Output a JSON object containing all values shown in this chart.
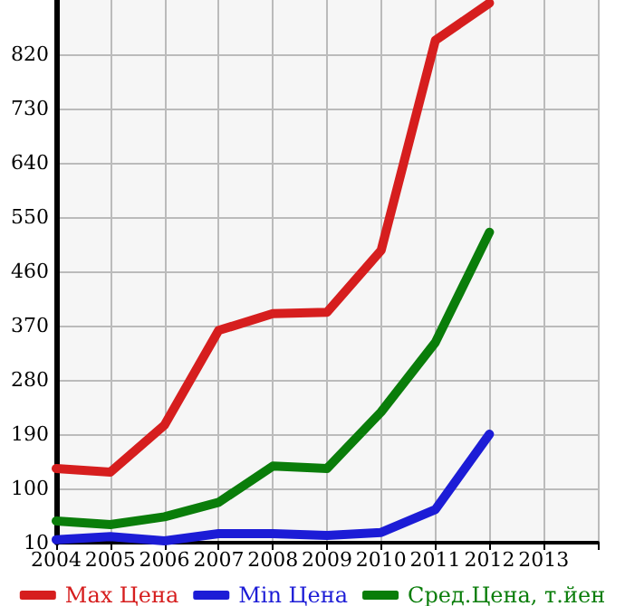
{
  "chart_data": {
    "type": "line",
    "x": [
      2004,
      2005,
      2006,
      2007,
      2008,
      2009,
      2010,
      2011,
      2012
    ],
    "series": [
      {
        "name": "Max Цена",
        "color": "#d61e1e",
        "values": [
          133,
          127,
          205,
          362,
          390,
          392,
          495,
          843,
          905
        ]
      },
      {
        "name": "Min Цена",
        "color": "#1c1cd6",
        "values": [
          15,
          20,
          13,
          25,
          25,
          22,
          27,
          65,
          190
        ]
      },
      {
        "name": "Сред.Цена, т.йен",
        "color": "#0a7d0a",
        "values": [
          46,
          40,
          53,
          77,
          137,
          133,
          227,
          342,
          525
        ]
      }
    ],
    "xlim": [
      2004,
      2014
    ],
    "xticks": [
      2004,
      2005,
      2006,
      2007,
      2008,
      2009,
      2010,
      2011,
      2012,
      2013,
      {
        "value": 2014,
        "label": null
      }
    ],
    "ylim": [
      10,
      910
    ],
    "yticks": [
      10,
      100,
      190,
      280,
      370,
      460,
      550,
      640,
      730,
      820
    ],
    "grid": true,
    "legend": "bottom",
    "marker": "none",
    "line_style": "solid"
  }
}
